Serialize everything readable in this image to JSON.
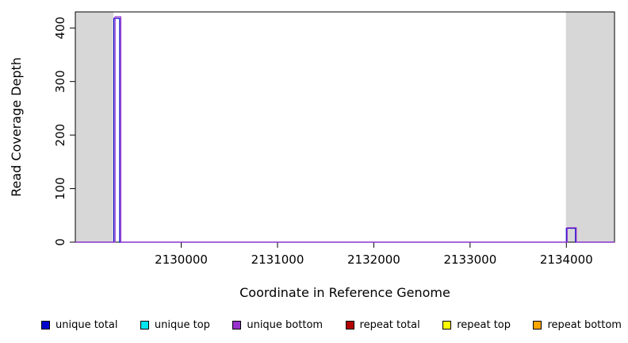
{
  "chart_data": {
    "type": "line",
    "title": "",
    "xlabel": "Coordinate in Reference Genome",
    "ylabel": "Read Coverage Depth",
    "xlim": [
      2128900,
      2134500
    ],
    "ylim": [
      0,
      430
    ],
    "x_ticks": [
      2130000,
      2131000,
      2132000,
      2133000,
      2134000
    ],
    "y_ticks": [
      0,
      100,
      200,
      300,
      400
    ],
    "grid": false,
    "legend_position": "bottom",
    "colors": {
      "band": "#d7d7d7",
      "axis": "#000000",
      "background": "#ffffff"
    },
    "shaded_regions": [
      {
        "x0": 2128900,
        "x1": 2129295,
        "color": "#d7d7d7"
      },
      {
        "x0": 2133995,
        "x1": 2134500,
        "color": "#d7d7d7"
      }
    ],
    "series": [
      {
        "name": "unique total",
        "color": "#0000cd",
        "points": [
          [
            2128900,
            0
          ],
          [
            2129300,
            0
          ],
          [
            2129300,
            418
          ],
          [
            2129360,
            418
          ],
          [
            2129360,
            0
          ],
          [
            2134000,
            0
          ],
          [
            2134000,
            26
          ],
          [
            2134095,
            26
          ],
          [
            2134095,
            0
          ],
          [
            2134500,
            0
          ]
        ]
      },
      {
        "name": "unique bottom",
        "color": "#9932cc",
        "points": [
          [
            2128900,
            0
          ],
          [
            2129313,
            0
          ],
          [
            2129313,
            421
          ],
          [
            2129373,
            421
          ],
          [
            2129373,
            0
          ],
          [
            2134008,
            0
          ],
          [
            2134008,
            27
          ],
          [
            2134103,
            27
          ],
          [
            2134103,
            0
          ],
          [
            2134500,
            0
          ]
        ]
      }
    ],
    "legend": [
      {
        "label": "unique total",
        "color": "#0000cd"
      },
      {
        "label": "unique top",
        "color": "#00e5ee"
      },
      {
        "label": "unique bottom",
        "color": "#9932cc"
      },
      {
        "label": "repeat total",
        "color": "#b30000"
      },
      {
        "label": "repeat top",
        "color": "#ffff00"
      },
      {
        "label": "repeat bottom",
        "color": "#ffa500"
      }
    ]
  }
}
